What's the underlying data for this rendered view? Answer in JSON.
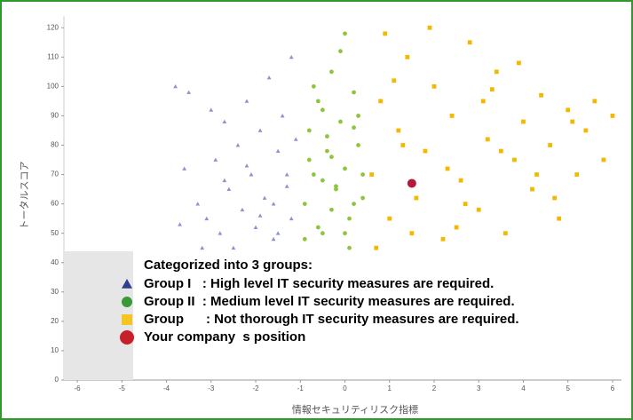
{
  "chart_data": {
    "type": "scatter",
    "ylabel": "トータルスコア",
    "xlabel": "情報セキュリティリスク指標",
    "legend_title": "Categorized into 3 groups:",
    "xlim": [
      -6.3,
      6.2
    ],
    "xticks": [
      -6,
      -5,
      -4,
      -3,
      -2,
      -1,
      0,
      1,
      2,
      3,
      4,
      5,
      6
    ],
    "ylim": [
      0,
      124
    ],
    "yticks": [
      0,
      10,
      20,
      30,
      40,
      50,
      60,
      70,
      80,
      90,
      100,
      110,
      120
    ],
    "series": [
      {
        "name": "Group I   : High level IT security measures are required.",
        "color": "#8f92d0",
        "legend_color": "#2e3f8f",
        "marker": "triangle",
        "x": [
          -3.8,
          -3.6,
          -3.5,
          -3.3,
          -3.1,
          -3.0,
          -2.9,
          -2.8,
          -2.7,
          -2.6,
          -2.5,
          -2.4,
          -2.3,
          -2.2,
          -2.1,
          -2.0,
          -1.9,
          -1.8,
          -1.7,
          -1.6,
          -1.5,
          -1.4,
          -1.3,
          -1.2,
          -1.1,
          -2.5,
          -2.2,
          -1.9,
          -1.6,
          -1.3,
          -3.2,
          -2.7,
          -1.5,
          -1.2,
          -3.7
        ],
        "values": [
          100,
          72,
          98,
          60,
          55,
          92,
          75,
          50,
          88,
          65,
          45,
          80,
          58,
          95,
          70,
          52,
          85,
          62,
          103,
          48,
          78,
          90,
          66,
          55,
          82,
          42,
          73,
          56,
          60,
          70,
          45,
          68,
          50,
          110,
          53
        ]
      },
      {
        "name": "Group II  : Medium level IT security measures are required.",
        "color": "#8cc63f",
        "legend_color": "#3a9a3a",
        "marker": "circle",
        "x": [
          -0.9,
          -0.8,
          -0.7,
          -0.6,
          -0.5,
          -0.4,
          -0.3,
          -0.2,
          -0.1,
          0,
          0.1,
          0.2,
          0.3,
          0.4,
          -0.9,
          -0.7,
          -0.5,
          -0.3,
          -0.1,
          0.1,
          0.3,
          -0.8,
          -0.6,
          -0.4,
          -0.2,
          0,
          0.2,
          0.4,
          -0.5,
          0,
          -0.3,
          0.2
        ],
        "values": [
          60,
          85,
          70,
          95,
          50,
          78,
          105,
          65,
          88,
          72,
          55,
          98,
          80,
          62,
          48,
          100,
          68,
          58,
          112,
          45,
          90,
          75,
          52,
          83,
          66,
          118,
          60,
          70,
          92,
          50,
          76,
          86
        ]
      },
      {
        "name": "Group      : Not thorough IT security measures are required.",
        "color": "#f5b800",
        "legend_color": "#f7c520",
        "marker": "square",
        "x": [
          0.6,
          0.8,
          1.0,
          1.2,
          1.4,
          1.6,
          1.8,
          2.0,
          2.2,
          2.4,
          2.6,
          2.8,
          3.0,
          3.2,
          3.4,
          3.6,
          3.8,
          4.0,
          4.2,
          4.4,
          4.6,
          4.8,
          5.0,
          5.2,
          5.4,
          5.6,
          5.8,
          6.0,
          0.7,
          1.1,
          1.5,
          1.9,
          2.3,
          2.7,
          3.1,
          3.5,
          3.9,
          4.3,
          4.7,
          5.1,
          2.5,
          1.3,
          0.9,
          3.3
        ],
        "values": [
          70,
          95,
          55,
          85,
          110,
          62,
          78,
          100,
          48,
          90,
          68,
          115,
          58,
          82,
          105,
          50,
          75,
          88,
          65,
          97,
          80,
          55,
          92,
          70,
          85,
          95,
          75,
          90,
          45,
          102,
          50,
          120,
          72,
          60,
          95,
          78,
          108,
          70,
          62,
          88,
          52,
          80,
          118,
          99
        ]
      },
      {
        "name": "Your company  s position",
        "color": "#b5193a",
        "legend_color": "#c8202a",
        "marker": "big-circle",
        "x": [
          1.5
        ],
        "values": [
          67
        ]
      }
    ]
  }
}
